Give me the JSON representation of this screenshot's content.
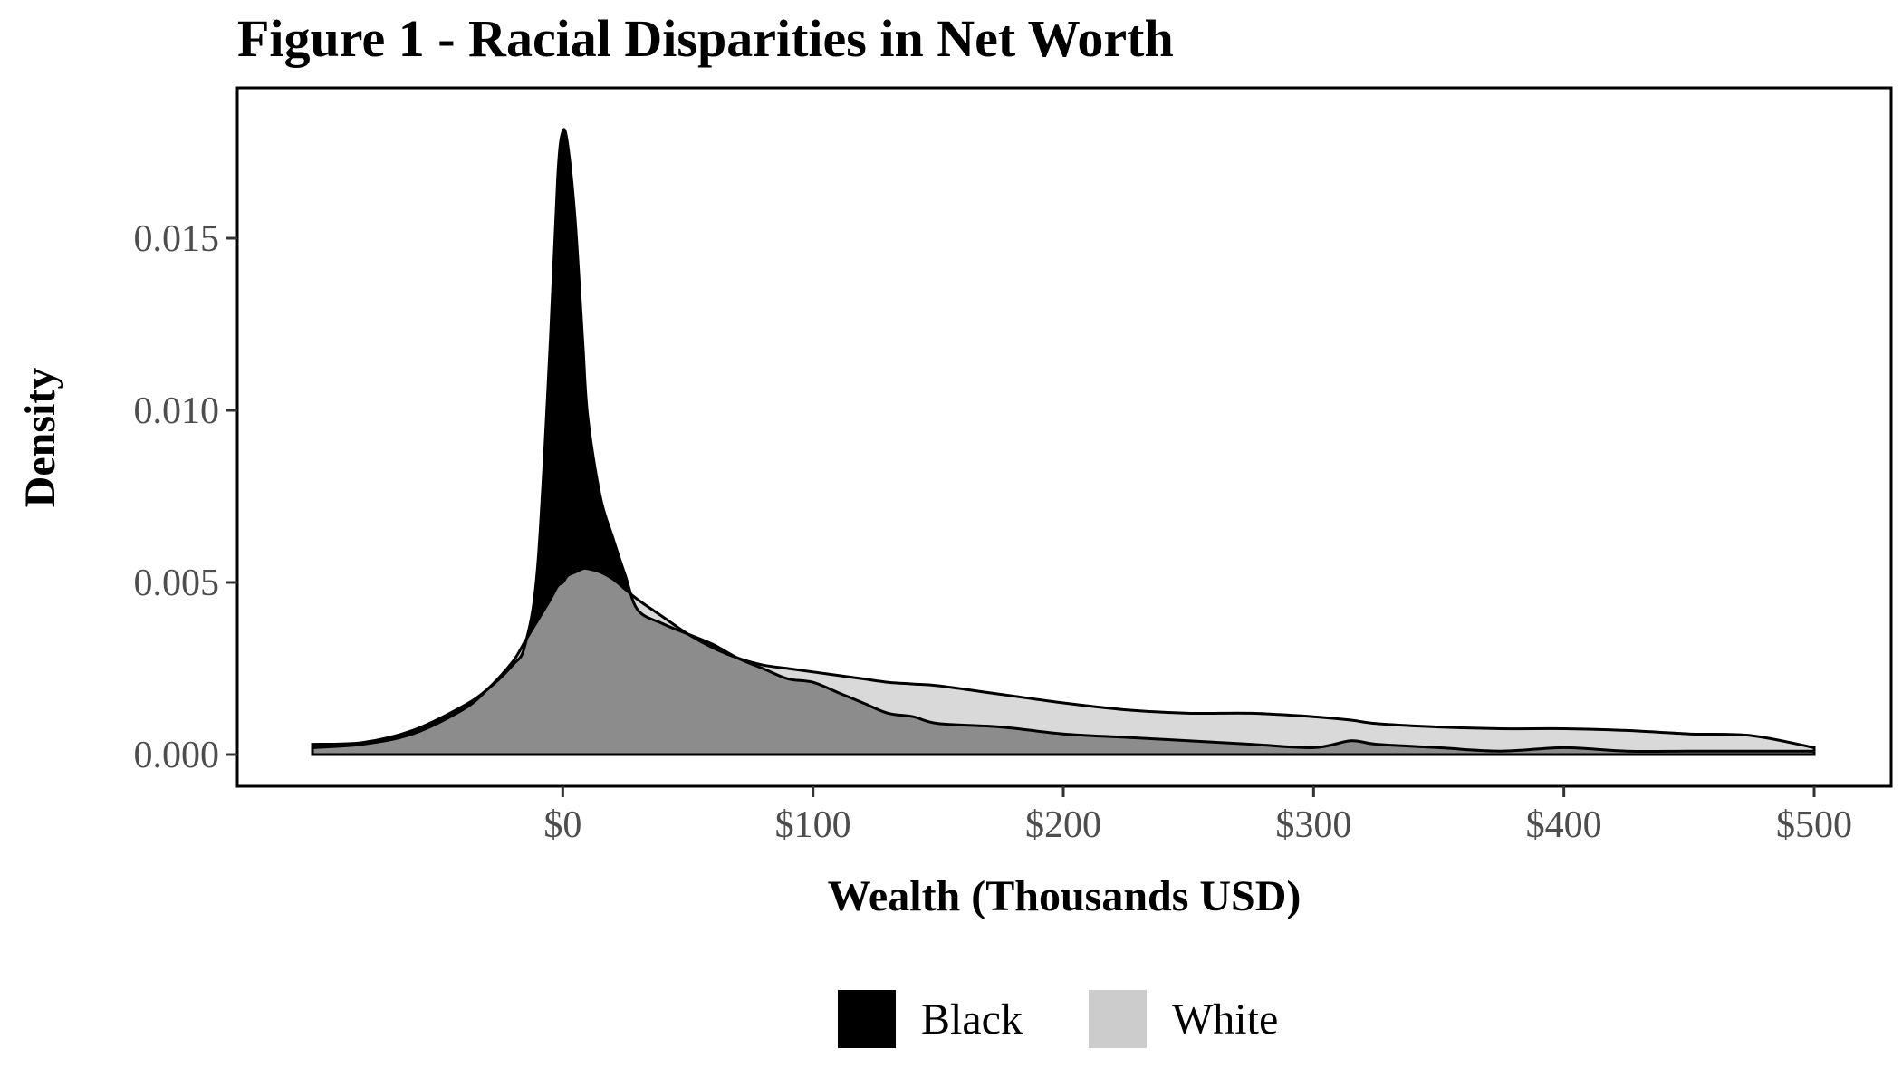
{
  "chart_data": {
    "type": "area",
    "title": "Figure 1 - Racial Disparities in Net Worth",
    "xlabel": "Wealth (Thousands USD)",
    "ylabel": "Density",
    "xlim": [
      -100,
      500
    ],
    "ylim": [
      0,
      0.0185
    ],
    "x_ticks": [
      0,
      100,
      200,
      300,
      400,
      500
    ],
    "x_tick_labels": [
      "$0",
      "$100",
      "$200",
      "$300",
      "$400",
      "$500"
    ],
    "y_ticks": [
      0.0,
      0.005,
      0.01,
      0.015
    ],
    "y_tick_labels": [
      "0.000",
      "0.005",
      "0.010",
      "0.015"
    ],
    "grid": false,
    "legend_position": "bottom",
    "colors": {
      "Black": "#000000",
      "White": "#cccccc",
      "overlap": "#8c8c8c"
    },
    "x": [
      -100,
      -80,
      -60,
      -40,
      -30,
      -20,
      -15,
      -10,
      -5,
      -2,
      0,
      2,
      5,
      8,
      10,
      15,
      20,
      25,
      30,
      40,
      50,
      60,
      70,
      80,
      90,
      100,
      110,
      120,
      130,
      140,
      150,
      175,
      200,
      225,
      250,
      275,
      300,
      315,
      325,
      350,
      375,
      400,
      425,
      450,
      475,
      500
    ],
    "series": [
      {
        "name": "Black",
        "values": [
          0.0003,
          0.00035,
          0.0007,
          0.0014,
          0.0019,
          0.0026,
          0.0032,
          0.0055,
          0.012,
          0.0168,
          0.0181,
          0.0177,
          0.0155,
          0.012,
          0.0098,
          0.0075,
          0.0063,
          0.0052,
          0.0042,
          0.0038,
          0.0035,
          0.0032,
          0.0028,
          0.0025,
          0.0022,
          0.0021,
          0.0018,
          0.0015,
          0.0012,
          0.0011,
          0.0009,
          0.0008,
          0.0006,
          0.0005,
          0.0004,
          0.0003,
          0.0002,
          0.0004,
          0.0003,
          0.0002,
          0.0001,
          0.0002,
          0.0001,
          0.0001,
          0.0001,
          0.0001
        ]
      },
      {
        "name": "White",
        "values": [
          0.0002,
          0.0003,
          0.0006,
          0.0013,
          0.0019,
          0.0027,
          0.0033,
          0.0039,
          0.0045,
          0.0049,
          0.005,
          0.0052,
          0.0053,
          0.0054,
          0.0054,
          0.0053,
          0.0051,
          0.0048,
          0.0045,
          0.004,
          0.0035,
          0.0031,
          0.0028,
          0.0026,
          0.0025,
          0.0024,
          0.0023,
          0.0022,
          0.0021,
          0.00205,
          0.002,
          0.00175,
          0.0015,
          0.0013,
          0.0012,
          0.0012,
          0.0011,
          0.001,
          0.0009,
          0.0008,
          0.00075,
          0.00075,
          0.0007,
          0.0006,
          0.00055,
          0.0002
        ]
      }
    ]
  }
}
